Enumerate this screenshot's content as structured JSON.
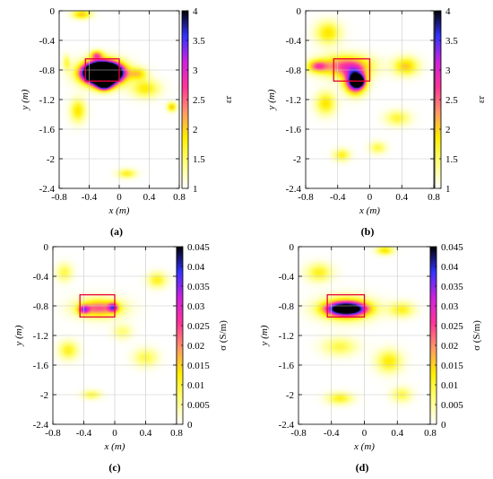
{
  "chart_data": [
    {
      "type": "heatmap",
      "caption": "(a)",
      "xlabel": "x (m)",
      "ylabel": "y (m)",
      "colorbar_label": "εr",
      "xlim": [
        -0.8,
        0.8
      ],
      "ylim": [
        -2.4,
        0
      ],
      "x_ticks": [
        "-0.8",
        "-0.4",
        "0",
        "0.4",
        "0.8"
      ],
      "y_ticks": [
        "0",
        "-0.4",
        "-0.8",
        "-1.2",
        "-1.6",
        "-2",
        "-2.4"
      ],
      "colorbar_range": [
        1,
        4
      ],
      "colorbar_ticks": [
        "4",
        "3.5",
        "3",
        "2.5",
        "2",
        "1.5",
        "1"
      ],
      "colormap": [
        "#ffffff",
        "#ffff80",
        "#ffee00",
        "#ff9966",
        "#ff3399",
        "#cc22dd",
        "#3333ff",
        "#000000"
      ],
      "target_box": {
        "x": [
          -0.45,
          0.0
        ],
        "y": [
          -0.95,
          -0.65
        ],
        "color": "#e8003a"
      },
      "blobs": [
        {
          "x": -0.22,
          "y": -0.84,
          "sx": 0.18,
          "sy": 0.1,
          "v": 3.4
        },
        {
          "x": -0.22,
          "y": -0.84,
          "sx": 0.25,
          "sy": 0.15,
          "v": 1.6
        },
        {
          "x": -0.2,
          "y": -0.98,
          "sx": 0.1,
          "sy": 0.08,
          "v": 1.2
        },
        {
          "x": -0.3,
          "y": -0.6,
          "sx": 0.08,
          "sy": 0.06,
          "v": 0.45
        },
        {
          "x": 0.25,
          "y": -0.85,
          "sx": 0.12,
          "sy": 0.08,
          "v": 0.3
        },
        {
          "x": -0.55,
          "y": -1.35,
          "sx": 0.1,
          "sy": 0.15,
          "v": 0.3
        },
        {
          "x": 0.35,
          "y": -1.05,
          "sx": 0.18,
          "sy": 0.12,
          "v": 0.28
        },
        {
          "x": -0.5,
          "y": -0.05,
          "sx": 0.12,
          "sy": 0.06,
          "v": 0.35
        },
        {
          "x": 0.1,
          "y": -2.2,
          "sx": 0.12,
          "sy": 0.06,
          "v": 0.25
        },
        {
          "x": 0.7,
          "y": -1.3,
          "sx": 0.06,
          "sy": 0.06,
          "v": 0.35
        },
        {
          "x": -0.7,
          "y": -0.7,
          "sx": 0.05,
          "sy": 0.1,
          "v": 0.2
        }
      ]
    },
    {
      "type": "heatmap",
      "caption": "(b)",
      "xlabel": "x (m)",
      "ylabel": "y (m)",
      "colorbar_label": "εr",
      "xlim": [
        -0.8,
        0.8
      ],
      "ylim": [
        -2.4,
        0
      ],
      "x_ticks": [
        "-0.8",
        "-0.4",
        "0",
        "0.4",
        "0.8"
      ],
      "y_ticks": [
        "0",
        "-0.4",
        "-0.8",
        "-1.2",
        "-1.6",
        "-2",
        "-2.4"
      ],
      "colorbar_range": [
        1,
        4
      ],
      "colorbar_ticks": [
        "4",
        "3.5",
        "3",
        "2.5",
        "2",
        "1.5",
        "1"
      ],
      "colormap": [
        "#ffffff",
        "#ffff80",
        "#ffee00",
        "#ff9966",
        "#ff3399",
        "#cc22dd",
        "#3333ff",
        "#000000"
      ],
      "target_box": {
        "x": [
          -0.45,
          0.0
        ],
        "y": [
          -0.95,
          -0.65
        ],
        "color": "#e8003a"
      },
      "blobs": [
        {
          "x": -0.15,
          "y": -0.95,
          "sx": 0.06,
          "sy": 0.06,
          "v": 1.8
        },
        {
          "x": -0.18,
          "y": -0.95,
          "sx": 0.12,
          "sy": 0.15,
          "v": 1.1
        },
        {
          "x": -0.3,
          "y": -0.75,
          "sx": 0.3,
          "sy": 0.14,
          "v": 0.55
        },
        {
          "x": -0.65,
          "y": -0.75,
          "sx": 0.12,
          "sy": 0.08,
          "v": 0.45
        },
        {
          "x": -0.52,
          "y": -0.3,
          "sx": 0.15,
          "sy": 0.15,
          "v": 0.3
        },
        {
          "x": 0.45,
          "y": -0.75,
          "sx": 0.15,
          "sy": 0.12,
          "v": 0.35
        },
        {
          "x": -0.55,
          "y": -1.25,
          "sx": 0.12,
          "sy": 0.15,
          "v": 0.3
        },
        {
          "x": 0.35,
          "y": -1.45,
          "sx": 0.15,
          "sy": 0.1,
          "v": 0.22
        },
        {
          "x": -0.35,
          "y": -1.95,
          "sx": 0.1,
          "sy": 0.08,
          "v": 0.25
        },
        {
          "x": 0.1,
          "y": -1.85,
          "sx": 0.1,
          "sy": 0.08,
          "v": 0.2
        }
      ]
    },
    {
      "type": "heatmap",
      "caption": "(c)",
      "xlabel": "x (m)",
      "ylabel": "y (m)",
      "colorbar_label": "σ (S/m)",
      "xlim": [
        -0.8,
        0.8
      ],
      "ylim": [
        -2.4,
        0
      ],
      "x_ticks": [
        "-0.8",
        "-0.4",
        "0",
        "0.4",
        "0.8"
      ],
      "y_ticks": [
        "0",
        "-0.4",
        "-0.8",
        "-1.2",
        "-1.6",
        "-2",
        "-2.4"
      ],
      "colorbar_range": [
        0,
        0.045
      ],
      "colorbar_ticks": [
        "0.045",
        "0.04",
        "0.035",
        "0.03",
        "0.025",
        "0.02",
        "0.015",
        "0.01",
        "0.005",
        "0"
      ],
      "colormap": [
        "#ffffff",
        "#ffff80",
        "#ffee00",
        "#ff9966",
        "#ff3399",
        "#cc22dd",
        "#3333ff",
        "#000000"
      ],
      "target_box": {
        "x": [
          -0.45,
          0.0
        ],
        "y": [
          -0.95,
          -0.65
        ],
        "color": "#e8003a"
      },
      "blobs": [
        {
          "x": -0.4,
          "y": -0.85,
          "sx": 0.07,
          "sy": 0.06,
          "v": 0.5
        },
        {
          "x": -0.02,
          "y": -0.82,
          "sx": 0.06,
          "sy": 0.06,
          "v": 0.55
        },
        {
          "x": -0.2,
          "y": -0.83,
          "sx": 0.25,
          "sy": 0.1,
          "v": 0.35
        },
        {
          "x": -0.2,
          "y": -0.83,
          "sx": 0.32,
          "sy": 0.15,
          "v": 0.18
        },
        {
          "x": 0.55,
          "y": -0.45,
          "sx": 0.12,
          "sy": 0.1,
          "v": 0.25
        },
        {
          "x": -0.65,
          "y": -0.35,
          "sx": 0.1,
          "sy": 0.12,
          "v": 0.2
        },
        {
          "x": -0.6,
          "y": -1.4,
          "sx": 0.12,
          "sy": 0.12,
          "v": 0.25
        },
        {
          "x": 0.4,
          "y": -1.5,
          "sx": 0.15,
          "sy": 0.12,
          "v": 0.2
        },
        {
          "x": -0.3,
          "y": -2.0,
          "sx": 0.12,
          "sy": 0.06,
          "v": 0.2
        },
        {
          "x": 0.1,
          "y": -1.15,
          "sx": 0.12,
          "sy": 0.1,
          "v": 0.15
        }
      ]
    },
    {
      "type": "heatmap",
      "caption": "(d)",
      "xlabel": "x (m)",
      "ylabel": "y (m)",
      "colorbar_label": "σ (S/m)",
      "xlim": [
        -0.8,
        0.8
      ],
      "ylim": [
        -2.4,
        0
      ],
      "x_ticks": [
        "-0.8",
        "-0.4",
        "0",
        "0.4",
        "0.8"
      ],
      "y_ticks": [
        "0",
        "-0.4",
        "-0.8",
        "-1.2",
        "-1.6",
        "-2",
        "-2.4"
      ],
      "colorbar_range": [
        0,
        0.045
      ],
      "colorbar_ticks": [
        "0.045",
        "0.04",
        "0.035",
        "0.03",
        "0.025",
        "0.02",
        "0.015",
        "0.01",
        "0.005",
        "0"
      ],
      "colormap": [
        "#ffffff",
        "#ffff80",
        "#ffee00",
        "#ff9966",
        "#ff3399",
        "#cc22dd",
        "#3333ff",
        "#000000"
      ],
      "target_box": {
        "x": [
          -0.45,
          0.0
        ],
        "y": [
          -0.95,
          -0.65
        ],
        "color": "#e8003a"
      },
      "blobs": [
        {
          "x": -0.22,
          "y": -0.84,
          "sx": 0.22,
          "sy": 0.08,
          "v": 1.05
        },
        {
          "x": -0.22,
          "y": -0.84,
          "sx": 0.3,
          "sy": 0.15,
          "v": 0.5
        },
        {
          "x": 0.45,
          "y": -0.85,
          "sx": 0.15,
          "sy": 0.1,
          "v": 0.25
        },
        {
          "x": -0.55,
          "y": -0.35,
          "sx": 0.15,
          "sy": 0.12,
          "v": 0.25
        },
        {
          "x": -0.3,
          "y": -1.35,
          "sx": 0.2,
          "sy": 0.12,
          "v": 0.2
        },
        {
          "x": 0.3,
          "y": -1.55,
          "sx": 0.15,
          "sy": 0.15,
          "v": 0.28
        },
        {
          "x": -0.3,
          "y": -2.05,
          "sx": 0.15,
          "sy": 0.08,
          "v": 0.25
        },
        {
          "x": 0.45,
          "y": -2.0,
          "sx": 0.12,
          "sy": 0.1,
          "v": 0.2
        },
        {
          "x": 0.25,
          "y": -0.05,
          "sx": 0.1,
          "sy": 0.06,
          "v": 0.3
        }
      ]
    }
  ]
}
